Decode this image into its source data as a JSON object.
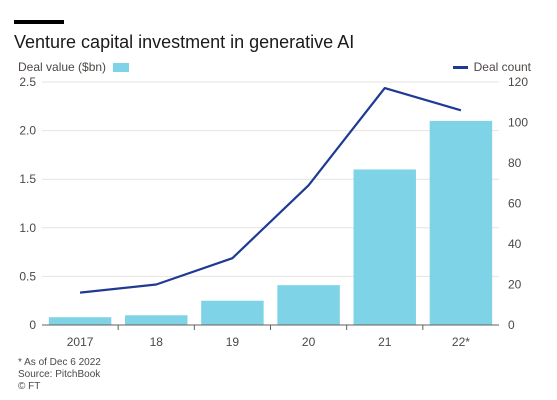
{
  "chart_data": {
    "type": "bar",
    "title": "Venture capital investment in generative AI",
    "categories": [
      "2017",
      "18",
      "19",
      "20",
      "21",
      "22*"
    ],
    "series": [
      {
        "name": "Deal value ($bn)",
        "type": "bar",
        "axis": "left",
        "values": [
          0.08,
          0.1,
          0.25,
          0.41,
          1.6,
          2.1
        ],
        "color": "#7fd3e6"
      },
      {
        "name": "Deal count",
        "type": "line",
        "axis": "right",
        "values": [
          16,
          20,
          33,
          69,
          117,
          106
        ],
        "color": "#1f3a93"
      }
    ],
    "y_left": {
      "ylim": [
        0,
        2.5
      ],
      "ticks": [
        "0",
        "0.5",
        "1.0",
        "1.5",
        "2.0",
        "2.5"
      ]
    },
    "y_right": {
      "ylim": [
        0,
        120
      ],
      "ticks": [
        "0",
        "20",
        "40",
        "60",
        "80",
        "100",
        "120"
      ]
    },
    "grid": true,
    "legend": {
      "left": "Deal value ($bn)",
      "right": "Deal count"
    },
    "footnotes": [
      "* As of Dec 6 2022",
      "Source: PitchBook",
      "© FT"
    ]
  }
}
